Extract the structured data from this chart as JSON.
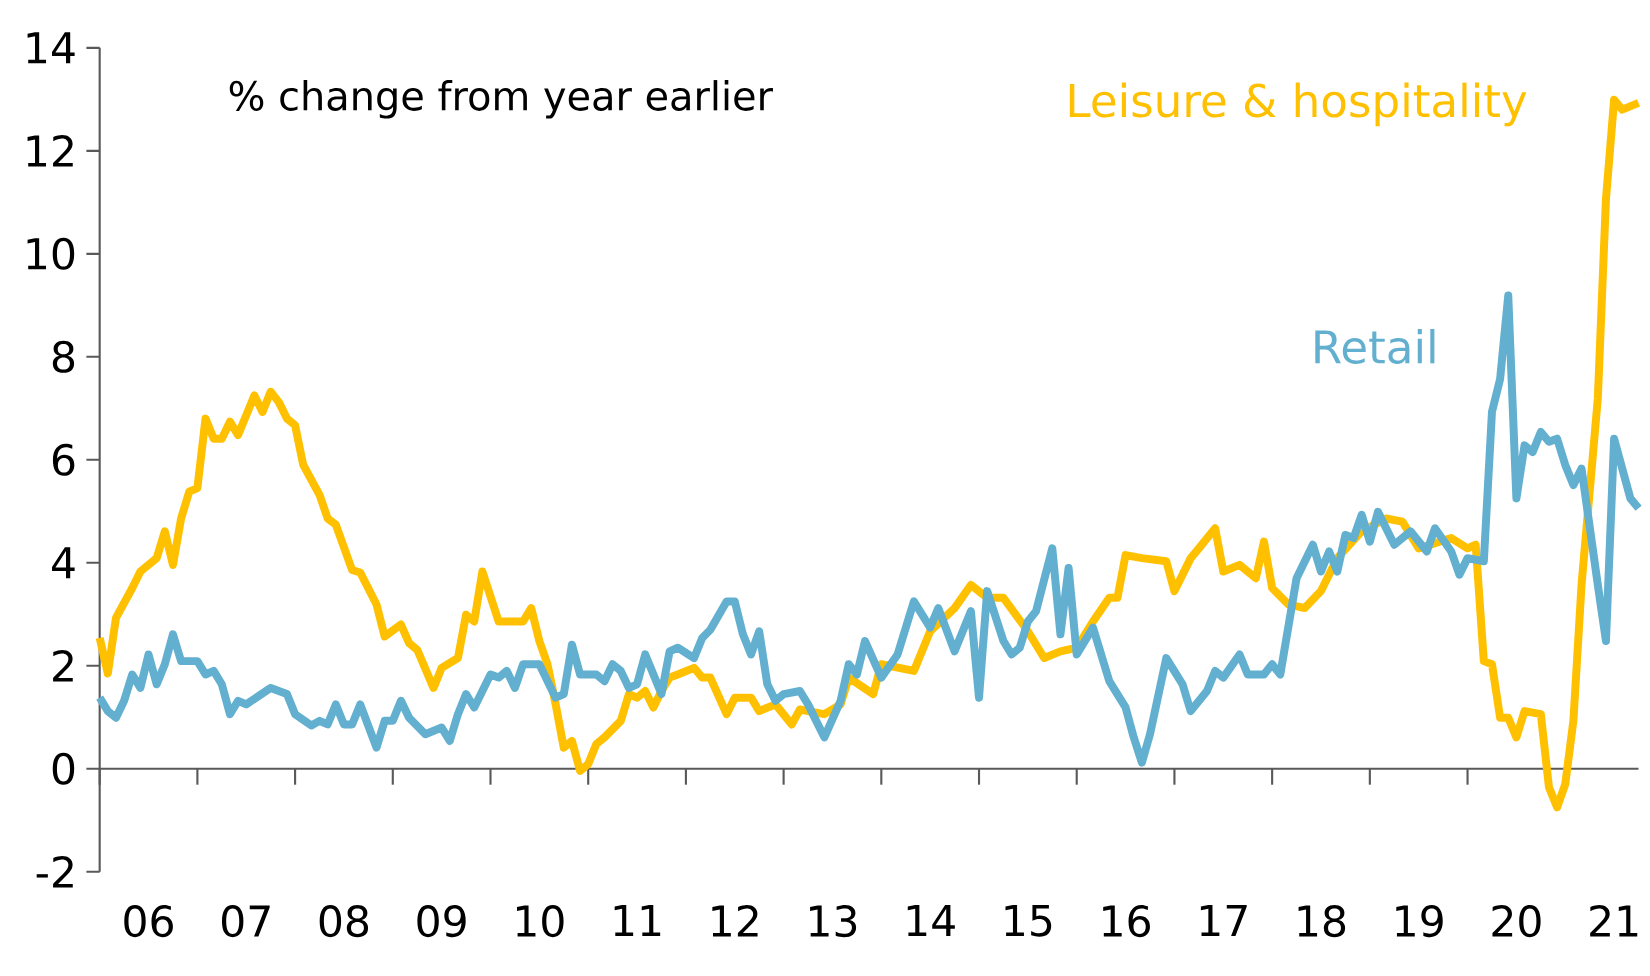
{
  "chart_data": {
    "type": "line",
    "annotations": [
      "% change from year earlier"
    ],
    "xlim": [
      "2006-01",
      "2021-10"
    ],
    "ylim": [
      -2,
      14
    ],
    "yticks": [
      -2,
      0,
      2,
      4,
      6,
      8,
      10,
      12,
      14
    ],
    "xticks": [
      {
        "value": "2006-01",
        "label": null
      },
      {
        "value": "2006-07",
        "label": "06"
      },
      {
        "value": "2007-01",
        "label": null
      },
      {
        "value": "2007-07",
        "label": "07"
      },
      {
        "value": "2008-01",
        "label": null
      },
      {
        "value": "2008-07",
        "label": "08"
      },
      {
        "value": "2009-01",
        "label": null
      },
      {
        "value": "2009-07",
        "label": "09"
      },
      {
        "value": "2010-01",
        "label": null
      },
      {
        "value": "2010-07",
        "label": "10"
      },
      {
        "value": "2011-01",
        "label": null
      },
      {
        "value": "2011-07",
        "label": "11"
      },
      {
        "value": "2012-01",
        "label": null
      },
      {
        "value": "2012-07",
        "label": "12"
      },
      {
        "value": "2013-01",
        "label": null
      },
      {
        "value": "2013-07",
        "label": "13"
      },
      {
        "value": "2014-01",
        "label": null
      },
      {
        "value": "2014-07",
        "label": "14"
      },
      {
        "value": "2015-01",
        "label": null
      },
      {
        "value": "2015-07",
        "label": "15"
      },
      {
        "value": "2016-01",
        "label": null
      },
      {
        "value": "2016-07",
        "label": "16"
      },
      {
        "value": "2017-01",
        "label": null
      },
      {
        "value": "2017-07",
        "label": "17"
      },
      {
        "value": "2018-01",
        "label": null
      },
      {
        "value": "2018-07",
        "label": "18"
      },
      {
        "value": "2019-01",
        "label": null
      },
      {
        "value": "2019-07",
        "label": "19"
      },
      {
        "value": "2020-01",
        "label": null
      },
      {
        "value": "2020-07",
        "label": "20"
      },
      {
        "value": "2021-01",
        "label": null
      },
      {
        "value": "2021-07",
        "label": "21"
      }
    ],
    "legend": false,
    "marker": "none",
    "line_style": "solid",
    "series": [
      {
        "name": "Leisure & hospitality",
        "color": "#ffc000",
        "x": [
          "2006-01",
          "2006-02",
          "2006-03",
          "2006-05",
          "2006-06",
          "2006-08",
          "2006-09",
          "2006-10",
          "2006-11",
          "2006-12",
          "2007-01",
          "2007-02",
          "2007-03",
          "2007-04",
          "2007-05",
          "2007-06",
          "2007-08",
          "2007-09",
          "2007-10",
          "2007-11",
          "2007-12",
          "2008-01",
          "2008-02",
          "2008-04",
          "2008-05",
          "2008-06",
          "2008-08",
          "2008-09",
          "2008-11",
          "2008-12",
          "2009-02",
          "2009-03",
          "2009-04",
          "2009-06",
          "2009-07",
          "2009-09",
          "2009-10",
          "2009-11",
          "2009-12",
          "2010-02",
          "2010-05",
          "2010-06",
          "2010-07",
          "2010-08",
          "2010-09",
          "2010-10",
          "2010-11",
          "2010-12",
          "2011-01",
          "2011-02",
          "2011-03",
          "2011-05",
          "2011-06",
          "2011-07",
          "2011-08",
          "2011-09",
          "2011-10",
          "2011-11",
          "2011-12",
          "2012-02",
          "2012-03",
          "2012-04",
          "2012-06",
          "2012-07",
          "2012-09",
          "2012-10",
          "2012-12",
          "2013-02",
          "2013-03",
          "2013-04",
          "2013-06",
          "2013-08",
          "2013-09",
          "2013-12",
          "2014-01",
          "2014-05",
          "2014-07",
          "2014-10",
          "2014-12",
          "2015-02",
          "2015-04",
          "2015-07",
          "2015-09",
          "2015-11",
          "2016-01",
          "2016-03",
          "2016-05",
          "2016-06",
          "2016-07",
          "2016-09",
          "2016-12",
          "2017-01",
          "2017-03",
          "2017-04",
          "2017-06",
          "2017-07",
          "2017-09",
          "2017-11",
          "2017-12",
          "2018-01",
          "2018-03",
          "2018-05",
          "2018-07",
          "2018-09",
          "2018-12",
          "2019-03",
          "2019-05",
          "2019-07",
          "2019-11",
          "2020-01",
          "2020-02",
          "2020-03",
          "2020-04",
          "2020-05",
          "2020-06",
          "2020-07",
          "2020-08",
          "2020-10",
          "2020-11",
          "2020-12",
          "2021-01",
          "2021-02",
          "2021-03",
          "2021-05",
          "2021-06",
          "2021-07",
          "2021-08",
          "2021-10"
        ],
        "values": [
          2.54,
          1.85,
          2.93,
          3.51,
          3.83,
          4.09,
          4.61,
          3.96,
          4.86,
          5.38,
          5.45,
          6.8,
          6.41,
          6.41,
          6.74,
          6.48,
          7.25,
          6.93,
          7.32,
          7.12,
          6.8,
          6.67,
          5.9,
          5.32,
          4.86,
          4.74,
          3.86,
          3.81,
          3.19,
          2.57,
          2.8,
          2.44,
          2.31,
          1.57,
          1.96,
          2.15,
          2.99,
          2.86,
          3.83,
          2.86,
          2.86,
          3.12,
          2.48,
          2.03,
          1.25,
          0.41,
          0.54,
          -0.04,
          0.09,
          0.48,
          0.61,
          0.93,
          1.45,
          1.38,
          1.51,
          1.19,
          1.51,
          1.77,
          1.83,
          1.96,
          1.77,
          1.77,
          1.06,
          1.38,
          1.38,
          1.12,
          1.25,
          0.86,
          1.15,
          1.12,
          1.06,
          1.25,
          1.77,
          1.45,
          2.03,
          1.9,
          2.67,
          3.12,
          3.57,
          3.32,
          3.32,
          2.67,
          2.15,
          2.28,
          2.35,
          2.86,
          3.32,
          3.32,
          4.15,
          4.09,
          4.03,
          3.45,
          4.09,
          4.28,
          4.67,
          3.83,
          3.96,
          3.7,
          4.41,
          3.51,
          3.19,
          3.12,
          3.45,
          4.09,
          4.61,
          4.86,
          4.8,
          4.28,
          4.48,
          4.28,
          4.35,
          2.09,
          2.03,
          0.99,
          0.99,
          0.61,
          1.12,
          1.06,
          -0.36,
          -0.75,
          -0.3,
          0.93,
          3.57,
          7.19,
          11.06,
          12.99,
          12.8,
          12.93
        ]
      },
      {
        "name": "Retail",
        "color": "#62afcf",
        "x": [
          "2006-01",
          "2006-02",
          "2006-03",
          "2006-04",
          "2006-05",
          "2006-06",
          "2006-07",
          "2006-08",
          "2006-09",
          "2006-10",
          "2006-11",
          "2007-01",
          "2007-02",
          "2007-03",
          "2007-04",
          "2007-05",
          "2007-06",
          "2007-07",
          "2007-10",
          "2007-12",
          "2008-01",
          "2008-03",
          "2008-04",
          "2008-05",
          "2008-06",
          "2008-07",
          "2008-08",
          "2008-09",
          "2008-11",
          "2008-12",
          "2009-01",
          "2009-02",
          "2009-03",
          "2009-05",
          "2009-07",
          "2009-08",
          "2009-09",
          "2009-10",
          "2009-11",
          "2010-01",
          "2010-02",
          "2010-03",
          "2010-04",
          "2010-05",
          "2010-07",
          "2010-09",
          "2010-10",
          "2010-11",
          "2010-12",
          "2011-02",
          "2011-03",
          "2011-04",
          "2011-05",
          "2011-06",
          "2011-07",
          "2011-08",
          "2011-10",
          "2011-11",
          "2011-12",
          "2012-02",
          "2012-03",
          "2012-04",
          "2012-06",
          "2012-07",
          "2012-08",
          "2012-09",
          "2012-10",
          "2012-11",
          "2012-12",
          "2013-01",
          "2013-03",
          "2013-04",
          "2013-06",
          "2013-08",
          "2013-09",
          "2013-10",
          "2013-11",
          "2014-01",
          "2014-03",
          "2014-05",
          "2014-07",
          "2014-08",
          "2014-10",
          "2014-12",
          "2015-01",
          "2015-02",
          "2015-04",
          "2015-05",
          "2015-06",
          "2015-07",
          "2015-08",
          "2015-10",
          "2015-11",
          "2015-12",
          "2016-01",
          "2016-03",
          "2016-05",
          "2016-07",
          "2016-08",
          "2016-09",
          "2016-10",
          "2016-12",
          "2017-02",
          "2017-03",
          "2017-05",
          "2017-06",
          "2017-07",
          "2017-09",
          "2017-10",
          "2017-12",
          "2018-01",
          "2018-02",
          "2018-04",
          "2018-06",
          "2018-07",
          "2018-08",
          "2018-09",
          "2018-10",
          "2018-11",
          "2018-12",
          "2019-01",
          "2019-02",
          "2019-04",
          "2019-06",
          "2019-08",
          "2019-09",
          "2019-11",
          "2019-12",
          "2020-01",
          "2020-03",
          "2020-04",
          "2020-05",
          "2020-06",
          "2020-07",
          "2020-08",
          "2020-09",
          "2020-10",
          "2020-11",
          "2020-12",
          "2021-01",
          "2021-02",
          "2021-03",
          "2021-05",
          "2021-06",
          "2021-07",
          "2021-09",
          "2021-10"
        ],
        "values": [
          1.38,
          1.12,
          0.99,
          1.32,
          1.83,
          1.57,
          2.22,
          1.64,
          2.03,
          2.61,
          2.09,
          2.09,
          1.83,
          1.9,
          1.64,
          1.06,
          1.32,
          1.25,
          1.57,
          1.45,
          1.06,
          0.84,
          0.93,
          0.86,
          1.25,
          0.86,
          0.86,
          1.25,
          0.41,
          0.93,
          0.93,
          1.32,
          0.99,
          0.67,
          0.8,
          0.54,
          1.06,
          1.45,
          1.19,
          1.83,
          1.77,
          1.9,
          1.57,
          2.03,
          2.03,
          1.38,
          1.45,
          2.41,
          1.83,
          1.83,
          1.7,
          2.03,
          1.9,
          1.57,
          1.64,
          2.22,
          1.45,
          2.28,
          2.35,
          2.15,
          2.54,
          2.7,
          3.25,
          3.25,
          2.61,
          2.22,
          2.67,
          1.64,
          1.32,
          1.45,
          1.51,
          1.25,
          0.61,
          1.32,
          2.03,
          1.83,
          2.48,
          1.77,
          2.22,
          3.25,
          2.74,
          3.12,
          2.28,
          3.06,
          1.38,
          3.45,
          2.48,
          2.22,
          2.35,
          2.86,
          3.06,
          4.28,
          2.61,
          3.9,
          2.22,
          2.74,
          1.7,
          1.19,
          0.61,
          0.12,
          0.67,
          2.15,
          1.64,
          1.12,
          1.51,
          1.9,
          1.77,
          2.22,
          1.83,
          1.83,
          2.03,
          1.83,
          3.7,
          4.35,
          3.83,
          4.22,
          3.83,
          4.54,
          4.48,
          4.93,
          4.41,
          4.99,
          4.35,
          4.61,
          4.22,
          4.67,
          4.22,
          3.77,
          4.09,
          4.03,
          6.93,
          7.57,
          9.19,
          5.25,
          6.28,
          6.15,
          6.54,
          6.35,
          6.41,
          5.9,
          5.51,
          5.83,
          3.57,
          2.48,
          6.41,
          5.25,
          5.06
        ]
      }
    ]
  }
}
